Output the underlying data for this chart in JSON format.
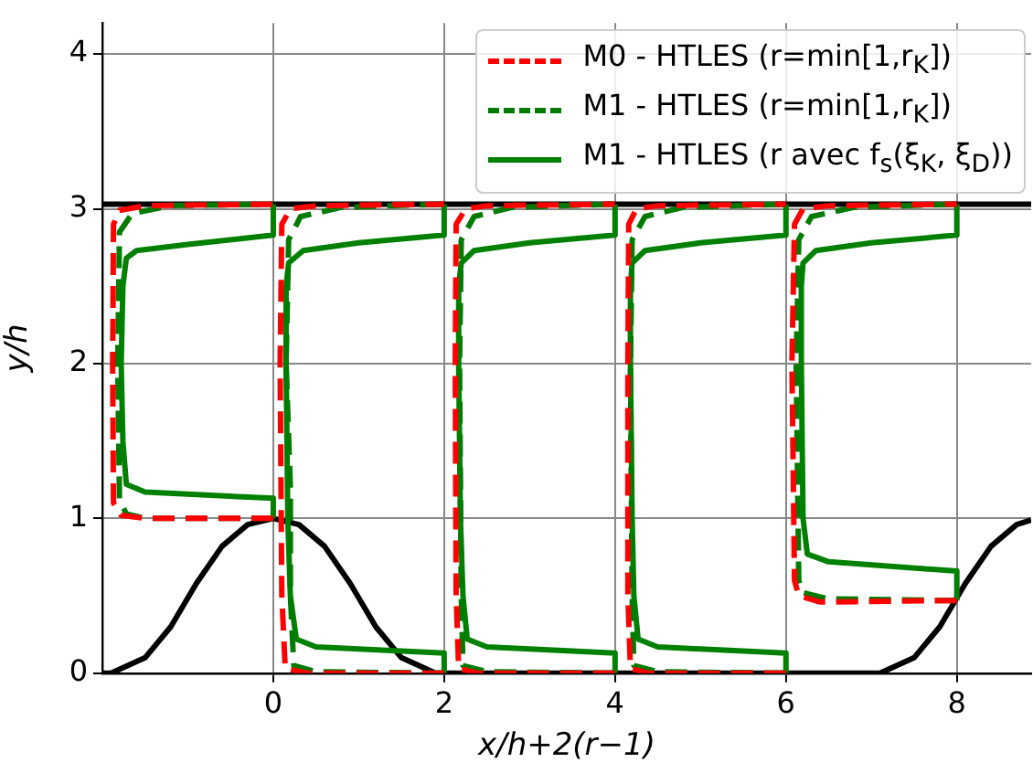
{
  "chart_data": {
    "type": "line",
    "xlabel": "x/h+2(r−1)",
    "ylabel": "y/h",
    "xlim": [
      -2,
      8.87
    ],
    "ylim": [
      0,
      4.2
    ],
    "xticks": [
      0,
      2,
      4,
      6,
      8
    ],
    "yticks": [
      0,
      1,
      2,
      3,
      4
    ],
    "grid": true,
    "legend": "top right",
    "series": [
      {
        "name": "M0 - HTLES (r=min[1,r$_{K}$])",
        "color": "#ff0000",
        "line_style": "dashed",
        "x": [
          0,
          -1.5,
          -1.78,
          -1.87,
          -1.88,
          -1.87,
          -1.8,
          -1.5,
          0,
          null,
          2,
          0.4,
          0.14,
          0.1,
          0.08,
          0.1,
          0.2,
          0.5,
          2,
          null,
          4,
          2.4,
          2.17,
          2.14,
          2.13,
          2.14,
          2.25,
          2.5,
          4,
          null,
          6,
          4.4,
          4.18,
          4.15,
          4.15,
          4.16,
          4.25,
          4.5,
          6,
          null,
          8,
          6.4,
          6.15,
          6.1,
          6.07,
          6.1,
          6.2,
          6.5,
          8
        ],
        "values": [
          1.0,
          1.0,
          1.02,
          1.1,
          2.0,
          2.9,
          2.99,
          3.02,
          3.03,
          null,
          0,
          0,
          0.03,
          0.5,
          2.0,
          2.9,
          3.0,
          3.02,
          3.03,
          null,
          0,
          0,
          0.03,
          0.5,
          2.0,
          2.9,
          3.0,
          3.02,
          3.03,
          null,
          0,
          0,
          0.03,
          0.5,
          2.0,
          2.9,
          3.0,
          3.02,
          3.03,
          null,
          0.47,
          0.46,
          0.5,
          0.6,
          2.0,
          2.9,
          3.0,
          3.02,
          3.03
        ]
      },
      {
        "name": "M1 - HTLES (r=min[1,r$_{K}$])",
        "color": "#007a00",
        "line_style": "dashed",
        "x": [
          0,
          -1.5,
          -1.72,
          -1.8,
          -1.82,
          -1.8,
          -1.65,
          -1.2,
          0,
          null,
          2,
          0.5,
          0.24,
          0.2,
          0.2,
          0.15,
          0.18,
          0.32,
          0.8,
          2,
          null,
          4,
          2.5,
          2.22,
          2.2,
          2.18,
          2.2,
          2.35,
          2.8,
          4,
          null,
          6,
          4.5,
          4.22,
          4.2,
          4.18,
          4.2,
          4.35,
          4.8,
          6,
          null,
          8,
          6.5,
          6.2,
          6.15,
          6.12,
          6.15,
          6.3,
          6.8,
          8
        ],
        "values": [
          1.0,
          1.0,
          1.03,
          1.12,
          2.0,
          2.85,
          2.97,
          3.02,
          3.03,
          null,
          0,
          0.01,
          0.05,
          0.5,
          1.2,
          2.0,
          2.8,
          2.95,
          3.01,
          3.03,
          null,
          0,
          0.01,
          0.05,
          0.5,
          2.0,
          2.8,
          2.95,
          3.01,
          3.03,
          null,
          0,
          0.01,
          0.05,
          0.5,
          2.0,
          2.8,
          2.95,
          3.01,
          3.03,
          null,
          0.47,
          0.48,
          0.52,
          0.6,
          2.0,
          2.8,
          2.95,
          3.01,
          3.03
        ]
      },
      {
        "name": "M1 - HTLES (r avec f$_{s}$(ξ$_{K}$, ξ$_{D}$))",
        "color": "#008000",
        "line_style": "solid",
        "x": [
          0,
          0,
          -1.5,
          -1.72,
          -1.76,
          -1.78,
          -1.76,
          -1.72,
          -1.6,
          -1.0,
          0,
          0,
          null,
          2,
          2,
          0.5,
          0.27,
          0.2,
          0.17,
          0.15,
          0.15,
          0.18,
          0.35,
          1,
          2,
          2,
          null,
          4,
          4,
          2.5,
          2.27,
          2.22,
          2.19,
          2.17,
          2.17,
          2.2,
          2.35,
          3,
          4,
          4,
          null,
          6,
          6,
          4.5,
          4.27,
          4.22,
          4.2,
          4.18,
          4.18,
          4.2,
          4.35,
          5,
          6,
          6,
          null,
          8,
          8,
          6.5,
          6.25,
          6.2,
          6.18,
          6.18,
          6.2,
          6.35,
          7,
          8,
          8
        ],
        "values": [
          1.0,
          1.13,
          1.17,
          1.22,
          1.5,
          2.0,
          2.5,
          2.68,
          2.73,
          2.77,
          2.83,
          3.03,
          null,
          0,
          0.13,
          0.17,
          0.22,
          0.5,
          1.0,
          2.0,
          2.5,
          2.65,
          2.73,
          2.78,
          2.83,
          3.03,
          null,
          0,
          0.13,
          0.17,
          0.22,
          0.5,
          1.0,
          2.0,
          2.5,
          2.65,
          2.73,
          2.78,
          2.83,
          3.03,
          null,
          0,
          0.13,
          0.17,
          0.22,
          0.5,
          1.0,
          2.0,
          2.5,
          2.65,
          2.73,
          2.78,
          2.83,
          3.03,
          null,
          0.47,
          0.66,
          0.72,
          0.77,
          1.0,
          2.0,
          2.5,
          2.65,
          2.73,
          2.78,
          2.83,
          3.03
        ]
      },
      {
        "color": "#000000",
        "line_style": "solid",
        "x": [
          -2,
          -1.9,
          -1.5,
          -1.2,
          -0.9,
          -0.6,
          -0.3,
          0,
          0.3,
          0.6,
          0.9,
          1.2,
          1.5,
          1.9,
          7.1,
          7.5,
          7.8,
          8.1,
          8.4,
          8.7,
          8.87
        ],
        "values": [
          0,
          0,
          0.1,
          0.3,
          0.58,
          0.82,
          0.96,
          1,
          0.96,
          0.82,
          0.58,
          0.3,
          0.1,
          0,
          0,
          0.1,
          0.3,
          0.58,
          0.82,
          0.96,
          0.99
        ]
      },
      {
        "color": "#000000",
        "line_style": "solid",
        "x": [
          -2,
          8.87
        ],
        "values": [
          3.03,
          3.03
        ]
      }
    ]
  }
}
